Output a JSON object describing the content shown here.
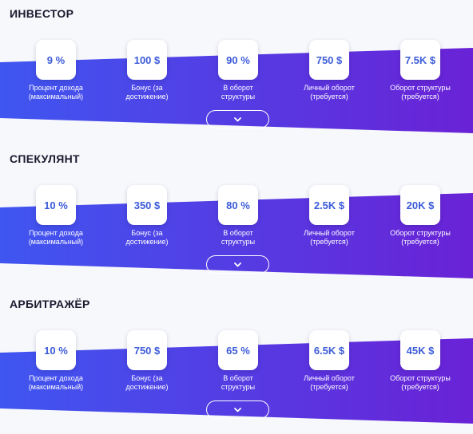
{
  "tariffs": [
    {
      "title": "ИНВЕСТОР",
      "stats": [
        {
          "value": "9 %",
          "label": "Процент дохода\n(максимальный)"
        },
        {
          "value": "100 $",
          "label": "Бонус (за\nдостижение)"
        },
        {
          "value": "90 %",
          "label": "В оборот\nструктуры"
        },
        {
          "value": "750 $",
          "label": "Личный оборот\n(требуется)"
        },
        {
          "value": "7.5K $",
          "label": "Оборот структуры\n(требуется)"
        }
      ],
      "expand_icon": "chevron-down-icon"
    },
    {
      "title": "СПЕКУЛЯНТ",
      "stats": [
        {
          "value": "10 %",
          "label": "Процент дохода\n(максимальный)"
        },
        {
          "value": "350 $",
          "label": "Бонус (за\nдостижение)"
        },
        {
          "value": "80 %",
          "label": "В оборот\nструктуры"
        },
        {
          "value": "2.5K $",
          "label": "Личный оборот\n(требуется)"
        },
        {
          "value": "20K $",
          "label": "Оборот структуры\n(требуется)"
        }
      ],
      "expand_icon": "chevron-down-icon"
    },
    {
      "title": "АРБИТРАЖЁР",
      "stats": [
        {
          "value": "10 %",
          "label": "Процент дохода\n(максимальный)"
        },
        {
          "value": "750 $",
          "label": "Бонус (за\nдостижение)"
        },
        {
          "value": "65 %",
          "label": "В оборот\nструктуры"
        },
        {
          "value": "6.5K $",
          "label": "Личный оборот\n(требуется)"
        },
        {
          "value": "45K $",
          "label": "Оборот структуры\n(требуется)"
        }
      ],
      "expand_icon": "chevron-down-icon"
    }
  ],
  "colors": {
    "band_start": "#3f56f0",
    "band_end": "#6a22d6",
    "card_text": "#3c5bd9",
    "background": "#f7f8fc"
  }
}
